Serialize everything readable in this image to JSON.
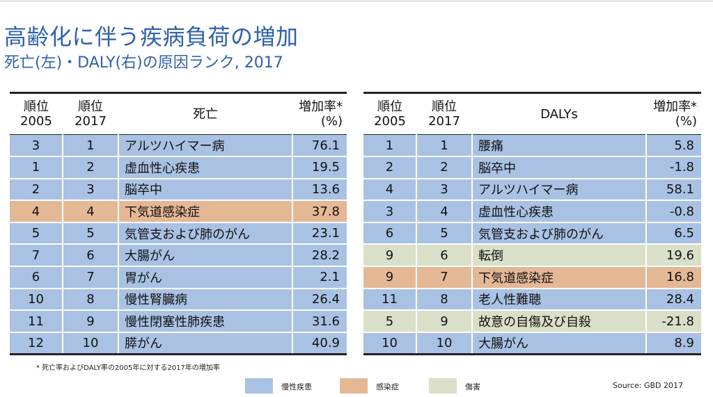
{
  "header": {
    "title": "高齢化に伴う疾病負荷の増加",
    "subtitle": "死亡(左)・DALY(右)の原因ランク, 2017"
  },
  "left_table": {
    "headers": {
      "rank2005_line1": "順位",
      "rank2005_line2": "2005",
      "rank2017_line1": "順位",
      "rank2017_line2": "2017",
      "name": "死亡",
      "rate_line1": "増加率*",
      "rate_line2": "(%)"
    },
    "rows": [
      {
        "r2005": "3",
        "r2017": "1",
        "name": "アルツハイマー病",
        "rate": "76.1",
        "category": "chronic"
      },
      {
        "r2005": "1",
        "r2017": "2",
        "name": "虚血性心疾患",
        "rate": "19.5",
        "category": "chronic"
      },
      {
        "r2005": "2",
        "r2017": "3",
        "name": "脳卒中",
        "rate": "13.6",
        "category": "chronic"
      },
      {
        "r2005": "4",
        "r2017": "4",
        "name": "下気道感染症",
        "rate": "37.8",
        "category": "infectious"
      },
      {
        "r2005": "5",
        "r2017": "5",
        "name": "気管支および肺のがん",
        "rate": "23.1",
        "category": "chronic"
      },
      {
        "r2005": "7",
        "r2017": "6",
        "name": "大腸がん",
        "rate": "28.2",
        "category": "chronic"
      },
      {
        "r2005": "6",
        "r2017": "7",
        "name": "胃がん",
        "rate": "2.1",
        "category": "chronic"
      },
      {
        "r2005": "10",
        "r2017": "8",
        "name": "慢性腎臓病",
        "rate": "26.4",
        "category": "chronic"
      },
      {
        "r2005": "11",
        "r2017": "9",
        "name": "慢性閉塞性肺疾患",
        "rate": "31.6",
        "category": "chronic"
      },
      {
        "r2005": "12",
        "r2017": "10",
        "name": "膵がん",
        "rate": "40.9",
        "category": "chronic"
      }
    ]
  },
  "right_table": {
    "headers": {
      "rank2005_line1": "順位",
      "rank2005_line2": "2005",
      "rank2017_line1": "順位",
      "rank2017_line2": "2017",
      "name": "DALYs",
      "rate_line1": "増加率*",
      "rate_line2": "(%)"
    },
    "rows": [
      {
        "r2005": "1",
        "r2017": "1",
        "name": "腰痛",
        "rate": "5.8",
        "category": "chronic"
      },
      {
        "r2005": "2",
        "r2017": "2",
        "name": "脳卒中",
        "rate": "-1.8",
        "category": "chronic"
      },
      {
        "r2005": "4",
        "r2017": "3",
        "name": "アルツハイマー病",
        "rate": "58.1",
        "category": "chronic"
      },
      {
        "r2005": "3",
        "r2017": "4",
        "name": "虚血性心疾患",
        "rate": "-0.8",
        "category": "chronic"
      },
      {
        "r2005": "6",
        "r2017": "5",
        "name": "気管支および肺のがん",
        "rate": "6.5",
        "category": "chronic"
      },
      {
        "r2005": "9",
        "r2017": "6",
        "name": "転倒",
        "rate": "19.6",
        "category": "injury"
      },
      {
        "r2005": "9",
        "r2017": "7",
        "name": "下気道感染症",
        "rate": "16.8",
        "category": "infectious"
      },
      {
        "r2005": "11",
        "r2017": "8",
        "name": "老人性難聴",
        "rate": "28.4",
        "category": "chronic"
      },
      {
        "r2005": "5",
        "r2017": "9",
        "name": "故意の自傷及び自殺",
        "rate": "-21.8",
        "category": "injury"
      },
      {
        "r2005": "10",
        "r2017": "10",
        "name": "大腸がん",
        "rate": "8.9",
        "category": "chronic"
      }
    ]
  },
  "footnote": "* 死亡率およびDALY率の2005年に対する2017年の増加率",
  "legend": [
    {
      "label": "慢性疾患",
      "category": "chronic",
      "color": "#a9c2e4"
    },
    {
      "label": "感染症",
      "category": "infectious",
      "color": "#e5b895"
    },
    {
      "label": "傷害",
      "category": "injury",
      "color": "#dadfc8"
    }
  ],
  "source": "Source: GBD 2017"
}
